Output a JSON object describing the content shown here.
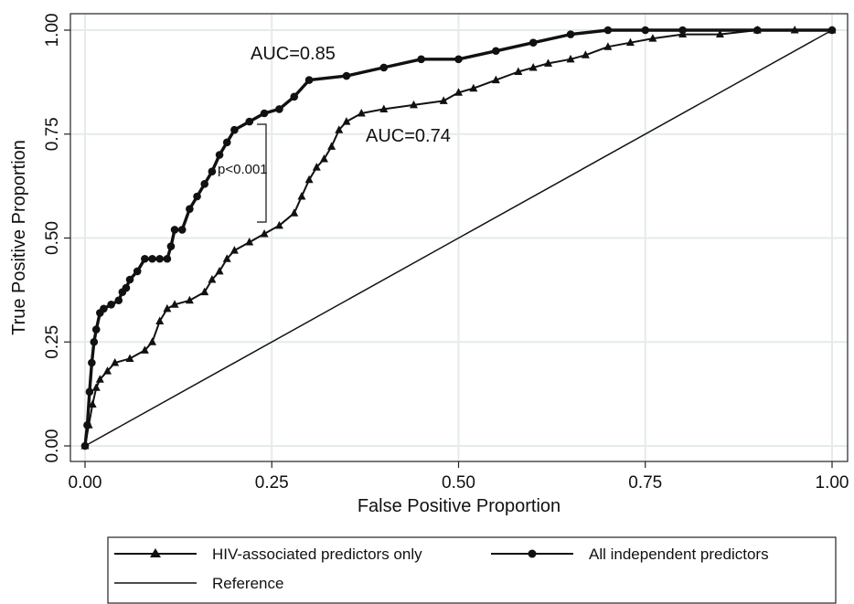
{
  "chart_data": {
    "type": "line",
    "xlabel": "False Positive Proportion",
    "ylabel": "True Positive Proportion",
    "xlim": [
      0,
      1
    ],
    "ylim": [
      0,
      1
    ],
    "x_ticks": [
      "0.00",
      "0.25",
      "0.50",
      "0.75",
      "1.00"
    ],
    "y_ticks": [
      "0.00",
      "0.25",
      "0.50",
      "0.75",
      "1.00"
    ],
    "grid": true,
    "legend_position": "bottom",
    "annotations": {
      "auc_all": "AUC=0.85",
      "auc_hiv": "AUC=0.74",
      "p_value": "p<0.001"
    },
    "series": [
      {
        "name": "HIV-associated predictors only",
        "marker": "triangle",
        "x": [
          0,
          0.005,
          0.01,
          0.015,
          0.02,
          0.03,
          0.04,
          0.06,
          0.08,
          0.09,
          0.1,
          0.11,
          0.12,
          0.14,
          0.16,
          0.17,
          0.18,
          0.19,
          0.2,
          0.22,
          0.24,
          0.26,
          0.28,
          0.29,
          0.3,
          0.31,
          0.32,
          0.33,
          0.34,
          0.35,
          0.37,
          0.4,
          0.44,
          0.48,
          0.5,
          0.52,
          0.55,
          0.58,
          0.6,
          0.62,
          0.65,
          0.67,
          0.7,
          0.73,
          0.76,
          0.8,
          0.85,
          0.9,
          0.95,
          1.0
        ],
        "y": [
          0,
          0.05,
          0.1,
          0.14,
          0.16,
          0.18,
          0.2,
          0.21,
          0.23,
          0.25,
          0.3,
          0.33,
          0.34,
          0.35,
          0.37,
          0.4,
          0.42,
          0.45,
          0.47,
          0.49,
          0.51,
          0.53,
          0.56,
          0.6,
          0.64,
          0.67,
          0.69,
          0.72,
          0.76,
          0.78,
          0.8,
          0.81,
          0.82,
          0.83,
          0.85,
          0.86,
          0.88,
          0.9,
          0.91,
          0.92,
          0.93,
          0.94,
          0.96,
          0.97,
          0.98,
          0.99,
          0.99,
          1.0,
          1.0,
          1.0
        ]
      },
      {
        "name": "All independent predictors",
        "marker": "circle",
        "x": [
          0,
          0.003,
          0.006,
          0.009,
          0.012,
          0.015,
          0.02,
          0.025,
          0.035,
          0.045,
          0.05,
          0.055,
          0.06,
          0.07,
          0.08,
          0.09,
          0.1,
          0.11,
          0.115,
          0.12,
          0.13,
          0.14,
          0.15,
          0.16,
          0.17,
          0.18,
          0.19,
          0.2,
          0.22,
          0.24,
          0.26,
          0.28,
          0.3,
          0.35,
          0.4,
          0.45,
          0.5,
          0.55,
          0.6,
          0.65,
          0.7,
          0.75,
          0.8,
          0.9,
          1.0
        ],
        "y": [
          0,
          0.05,
          0.13,
          0.2,
          0.25,
          0.28,
          0.32,
          0.33,
          0.34,
          0.35,
          0.37,
          0.38,
          0.4,
          0.42,
          0.45,
          0.45,
          0.45,
          0.45,
          0.48,
          0.52,
          0.52,
          0.57,
          0.6,
          0.63,
          0.66,
          0.7,
          0.73,
          0.76,
          0.78,
          0.8,
          0.81,
          0.84,
          0.88,
          0.89,
          0.91,
          0.93,
          0.93,
          0.95,
          0.97,
          0.99,
          1.0,
          1.0,
          1.0,
          1.0,
          1.0
        ]
      },
      {
        "name": "Reference",
        "marker": "none",
        "x": [
          0,
          1
        ],
        "y": [
          0,
          1
        ]
      }
    ]
  }
}
